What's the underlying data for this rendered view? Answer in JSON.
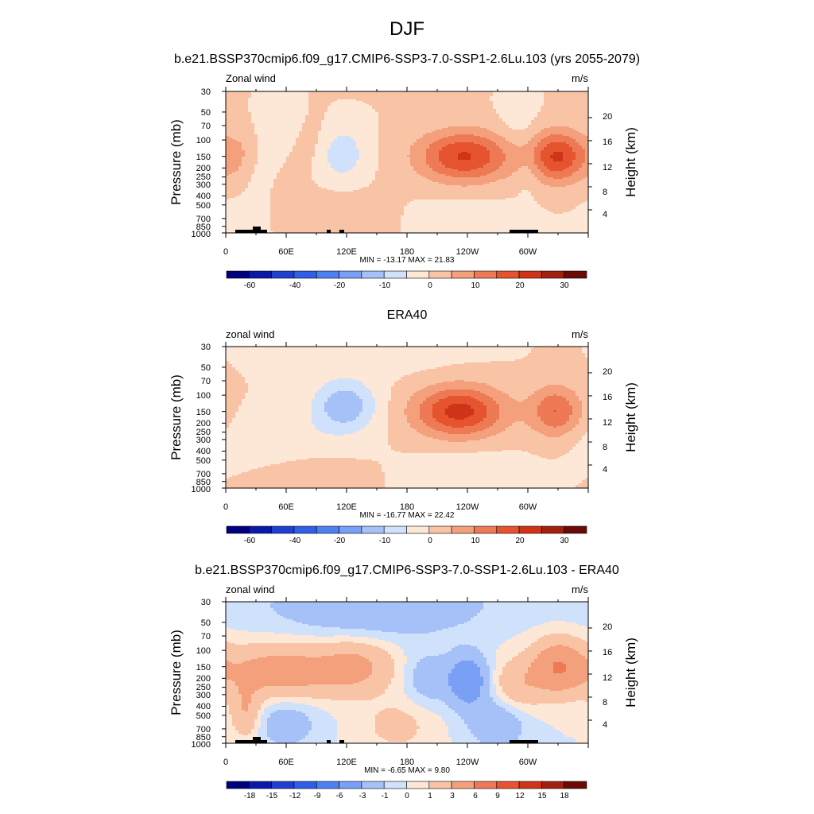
{
  "page_title": "DJF",
  "colors": {
    "ramp_a": [
      "#00007f",
      "#0a1aa8",
      "#1f3fd0",
      "#2f5fe6",
      "#4d80f0",
      "#7aa0f5",
      "#a6c1f7",
      "#cfe1fb",
      "#fde7d6",
      "#f9c4a6",
      "#f4a07d",
      "#ee7a55",
      "#e5532f",
      "#cf3418",
      "#a3200f",
      "#6b0a06"
    ],
    "ramp_d": [
      "#00007f",
      "#0a1aa8",
      "#1f3fd0",
      "#2f5fe6",
      "#4d80f0",
      "#7aa0f5",
      "#a6c1f7",
      "#cfe1fb",
      "#fde7d6",
      "#f9c4a6",
      "#f4a07d",
      "#ee7a55",
      "#e5532f",
      "#cf3418",
      "#a3200f",
      "#6b0a06"
    ],
    "topography": "#000000"
  },
  "chart_data": [
    {
      "type": "heatmap",
      "title": "b.e21.BSSP370cmip6.f09_g17.CMIP6-SSP3-7.0-SSP1-2.6Lu.103 (yrs 2055-2079)",
      "left_label": "Zonal wind",
      "right_label": "m/s",
      "ylabel": "Pressure (mb)",
      "ylabel_right": "Height (km)",
      "x_ticks": [
        "0",
        "60E",
        "120E",
        "180",
        "120W",
        "60W"
      ],
      "y_ticks": [
        "30",
        "50",
        "70",
        "100",
        "150",
        "200",
        "250",
        "300",
        "400",
        "500",
        "700",
        "850",
        "1000"
      ],
      "y_ticks_right": [
        "20",
        "16",
        "12",
        "8",
        "4"
      ],
      "stats": "MIN = -13.17  MAX =  21.83",
      "colorbar_labels": [
        "-60",
        "-40",
        "-20",
        "-10",
        "0",
        "10",
        "20",
        "30"
      ],
      "blobs": [
        {
          "lon": 150,
          "p": 0,
          "a": 0.1,
          "s": 1000
        },
        {
          "lon": 237,
          "p": 150,
          "a": 20.5,
          "s": 33
        },
        {
          "lon": 330,
          "p": 150,
          "a": 20.5,
          "s": 20
        },
        {
          "lon": 115,
          "p": 140,
          "a": -9,
          "s": 16
        },
        {
          "lon": 15,
          "p": 150,
          "a": 6,
          "s": 12
        },
        {
          "lon": 55,
          "p": 70,
          "a": -4,
          "s": 14
        },
        {
          "lon": 85,
          "p": 110,
          "a": 2.5,
          "s": 18
        },
        {
          "lon": 290,
          "p": 70,
          "a": -3,
          "s": 14
        },
        {
          "lon": 25,
          "p": 180,
          "a": -3,
          "s": 10
        },
        {
          "lon": 300,
          "p": 210,
          "a": -3,
          "s": 8
        },
        {
          "lon": 110,
          "p": 700,
          "a": 3,
          "s": 40
        },
        {
          "lon": 235,
          "p": 780,
          "a": -3,
          "s": 38
        },
        {
          "lon": 20,
          "p": 780,
          "a": -2,
          "s": 18
        }
      ]
    },
    {
      "type": "heatmap",
      "title": "ERA40",
      "left_label": "zonal wind",
      "right_label": "m/s",
      "ylabel": "Pressure (mb)",
      "ylabel_right": "Height (km)",
      "x_ticks": [
        "0",
        "60E",
        "120E",
        "180",
        "120W",
        "60W"
      ],
      "y_ticks": [
        "30",
        "50",
        "70",
        "100",
        "150",
        "200",
        "250",
        "300",
        "400",
        "500",
        "700",
        "850",
        "1000"
      ],
      "y_ticks_right": [
        "20",
        "16",
        "12",
        "8",
        "4"
      ],
      "stats": "MIN = -16.77  MAX =  22.42",
      "colorbar_labels": [
        "-60",
        "-40",
        "-20",
        "-10",
        "0",
        "10",
        "20",
        "30"
      ],
      "blobs": [
        {
          "lon": 150,
          "p": 0,
          "a": 0.1,
          "s": 1000
        },
        {
          "lon": 232,
          "p": 150,
          "a": 22,
          "s": 32
        },
        {
          "lon": 328,
          "p": 150,
          "a": 15,
          "s": 18
        },
        {
          "lon": 118,
          "p": 130,
          "a": -14,
          "s": 22
        },
        {
          "lon": 50,
          "p": 300,
          "a": -4,
          "s": 45
        },
        {
          "lon": 80,
          "p": 760,
          "a": 3,
          "s": 35
        },
        {
          "lon": 240,
          "p": 760,
          "a": -4,
          "s": 35
        },
        {
          "lon": 150,
          "p": 30,
          "a": -3,
          "s": 60
        }
      ]
    },
    {
      "type": "heatmap",
      "title": "b.e21.BSSP370cmip6.f09_g17.CMIP6-SSP3-7.0-SSP1-2.6Lu.103 - ERA40",
      "left_label": "zonal wind",
      "right_label": "m/s",
      "ylabel": "Pressure (mb)",
      "ylabel_right": "Height (km)",
      "x_ticks": [
        "0",
        "60E",
        "120E",
        "180",
        "120W",
        "60W"
      ],
      "y_ticks": [
        "30",
        "50",
        "70",
        "100",
        "150",
        "200",
        "250",
        "300",
        "400",
        "500",
        "700",
        "850",
        "1000"
      ],
      "y_ticks_right": [
        "20",
        "16",
        "12",
        "8",
        "4"
      ],
      "stats": "MIN =  -6.65  MAX =   9.80",
      "colorbar_labels": [
        "-18",
        "-15",
        "-12",
        "-9",
        "-6",
        "-3",
        "-1",
        "0",
        "1",
        "3",
        "6",
        "9",
        "12",
        "15",
        "18"
      ],
      "blobs": [
        {
          "lon": 150,
          "p": 0,
          "a": -0.5,
          "s": 1000
        },
        {
          "lon": 55,
          "p": 170,
          "a": 4.5,
          "s": 45
        },
        {
          "lon": 130,
          "p": 150,
          "a": 3,
          "s": 25
        },
        {
          "lon": 240,
          "p": 210,
          "a": -5.5,
          "s": 14
        },
        {
          "lon": 200,
          "p": 200,
          "a": -2,
          "s": 15
        },
        {
          "lon": 330,
          "p": 150,
          "a": 5.5,
          "s": 18
        },
        {
          "lon": 290,
          "p": 240,
          "a": 2.5,
          "s": 18
        },
        {
          "lon": 150,
          "p": 40,
          "a": -2,
          "s": 70
        },
        {
          "lon": 60,
          "p": 600,
          "a": -2,
          "s": 22
        },
        {
          "lon": 170,
          "p": 650,
          "a": 1.5,
          "s": 25
        },
        {
          "lon": 270,
          "p": 600,
          "a": -2.5,
          "s": 20
        },
        {
          "lon": 20,
          "p": 460,
          "a": 3,
          "s": 10
        }
      ]
    }
  ]
}
